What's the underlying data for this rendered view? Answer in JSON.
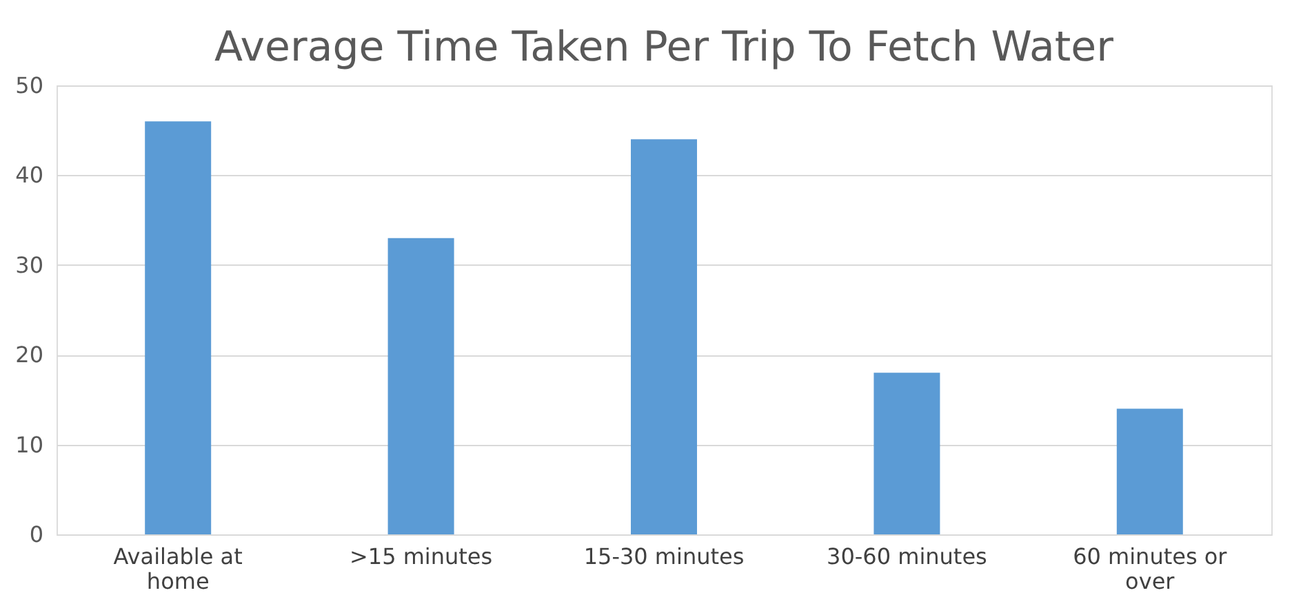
{
  "chart_data": {
    "type": "bar",
    "title": "Average Time Taken Per Trip To Fetch Water",
    "categories": [
      "Available at home",
      ">15 minutes",
      "15-30 minutes",
      "30-60 minutes",
      "60 minutes or over"
    ],
    "values": [
      46,
      33,
      44,
      18,
      14
    ],
    "color": "#5b9bd5",
    "ylim": [
      0,
      50
    ],
    "yticks": [
      0,
      10,
      20,
      30,
      40,
      50
    ],
    "grid": "y"
  }
}
